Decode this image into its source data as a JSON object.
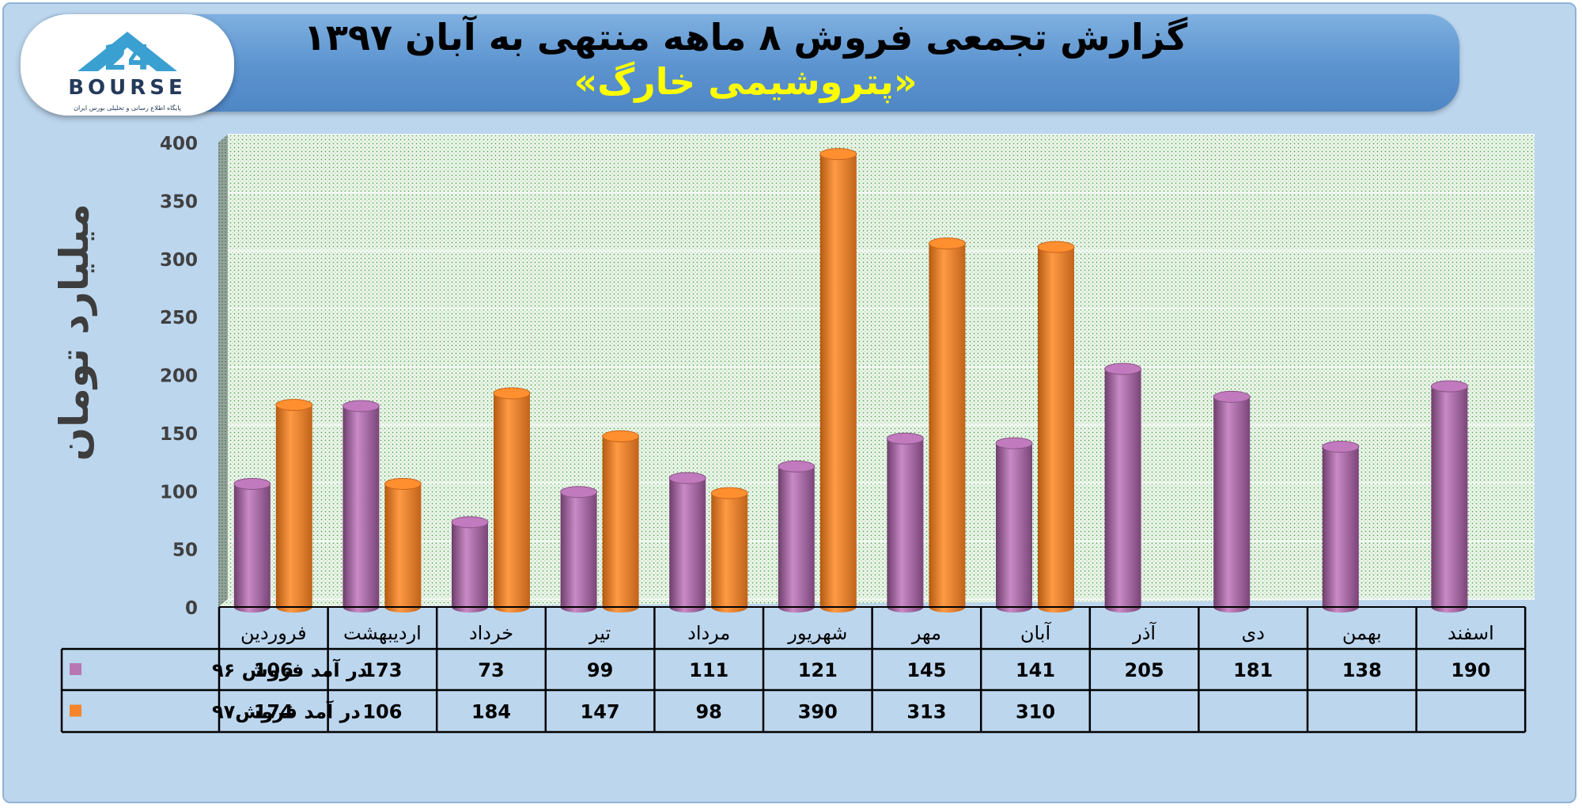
{
  "header": {
    "title": "گزارش تجمعی فروش ۸ ماهه منتهی به آبان ۱۳۹۷",
    "subtitle": "«پتروشیمی خارگ»"
  },
  "logo": {
    "wordmark": "BOURSE",
    "tagline": "پایگاه اطلاع رسانی و تحلیلی بورس ایران"
  },
  "chart_data": {
    "type": "bar",
    "ylabel": "میلیارد تومان",
    "ylim": [
      0,
      400
    ],
    "yticks": [
      "0",
      "50",
      "100",
      "150",
      "200",
      "250",
      "300",
      "350",
      "400"
    ],
    "categories": [
      "فروردین",
      "اردیبهشت",
      "خرداد",
      "تیر",
      "مرداد",
      "شهریور",
      "مهر",
      "آبان",
      "آذر",
      "دی",
      "بهمن",
      "اسفند"
    ],
    "series": [
      {
        "name": "در آمد فروش ۹۶",
        "color": "#b777b3",
        "values": [
          106,
          173,
          73,
          99,
          111,
          121,
          145,
          141,
          205,
          181,
          138,
          190
        ]
      },
      {
        "name": "در آمد فروش۹۷",
        "color": "#f5842a",
        "values": [
          174,
          106,
          184,
          147,
          98,
          390,
          313,
          310,
          null,
          null,
          null,
          null
        ]
      }
    ],
    "grid": true,
    "legend": "data-table"
  }
}
